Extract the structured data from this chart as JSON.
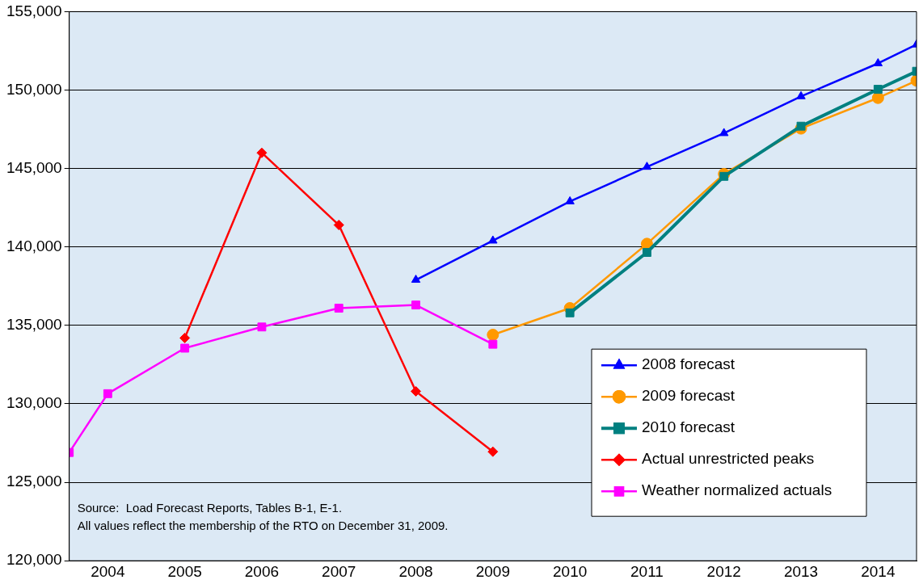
{
  "chart_data": {
    "type": "line",
    "xlim": [
      2003.5,
      2014.5
    ],
    "xticks": [
      2004,
      2005,
      2006,
      2007,
      2008,
      2009,
      2010,
      2011,
      2012,
      2013,
      2014
    ],
    "ylim": [
      120000,
      155000
    ],
    "yticks": [
      {
        "value": 120000,
        "label": "120,000"
      },
      {
        "value": 125000,
        "label": "125,000"
      },
      {
        "value": 130000,
        "label": "130,000"
      },
      {
        "value": 135000,
        "label": "135,000"
      },
      {
        "value": 140000,
        "label": "140,000"
      },
      {
        "value": 145000,
        "label": "145,000"
      },
      {
        "value": 150000,
        "label": "150,000"
      },
      {
        "value": 155000,
        "label": "155,000"
      }
    ],
    "grid": "y",
    "legend": "bottom right",
    "series": [
      {
        "name": "2008 forecast",
        "color": "#0000ff",
        "marker": "triangle",
        "x": [
          2008,
          2009,
          2010,
          2011,
          2012,
          2013,
          2014,
          2014.5
        ],
        "values": [
          137900,
          140400,
          142900,
          145100,
          147250,
          149600,
          151700,
          152900
        ]
      },
      {
        "name": "2009 forecast",
        "color": "#ff9900",
        "marker": "circle",
        "x": [
          2009,
          2010,
          2011,
          2012,
          2013,
          2014,
          2014.5
        ],
        "values": [
          134400,
          136100,
          140200,
          144650,
          147550,
          149500,
          150600
        ]
      },
      {
        "name": "2010 forecast",
        "color": "#008080",
        "marker": "square",
        "x": [
          2010,
          2011,
          2012,
          2013,
          2014,
          2014.5
        ],
        "values": [
          135800,
          139650,
          144500,
          147700,
          150050,
          151200
        ]
      },
      {
        "name": "Actual unrestricted peaks",
        "color": "#ff0000",
        "marker": "diamond",
        "x": [
          2005,
          2006,
          2007,
          2008,
          2009
        ],
        "values": [
          134200,
          146000,
          141400,
          130800,
          126950
        ]
      },
      {
        "name": "Weather normalized actuals",
        "color": "#ff00ff",
        "marker": "square",
        "x": [
          2003.5,
          2004,
          2005,
          2006,
          2007,
          2008,
          2009
        ],
        "values": [
          126900,
          130650,
          133550,
          134900,
          136100,
          136300,
          133800
        ]
      }
    ],
    "annotations": [
      "Source:  Load Forecast Reports, Tables B-1, E-1.",
      "All values reflect the membership of the RTO on December 31, 2009."
    ]
  }
}
